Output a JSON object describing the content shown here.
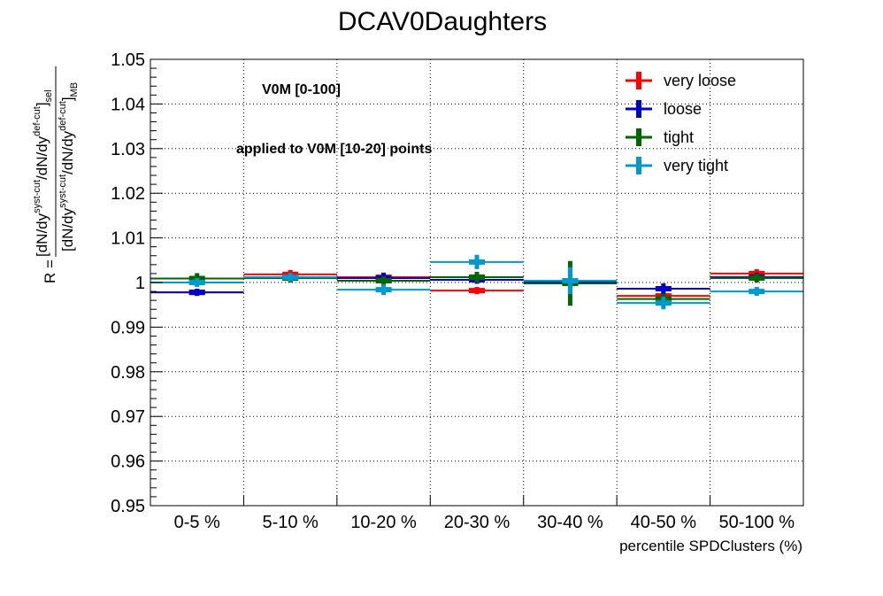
{
  "chart_data": {
    "type": "scatter",
    "title": "DCAV0Daughters",
    "xlabel": "percentile SPDClusters (%)",
    "ylabel": {
      "prefix": "R =",
      "numerator": [
        "[dN/dy",
        "syst-cut",
        "/dN/dy",
        "def-cut",
        "]",
        "sel"
      ],
      "denominator": [
        "[dN/dy",
        "syst-cut",
        "/dN/dy",
        "def-cut",
        "]",
        "MB"
      ]
    },
    "categories": [
      "0-5 %",
      "5-10 %",
      "10-20 %",
      "20-30 %",
      "30-40 %",
      "40-50 %",
      "50-100 %"
    ],
    "ylim": [
      0.95,
      1.05
    ],
    "yticks": [
      "0.95",
      "0.96",
      "0.97",
      "0.98",
      "0.99",
      "1",
      "1.01",
      "1.02",
      "1.03",
      "1.04",
      "1.05"
    ],
    "grid": true,
    "legend_position": "top-right",
    "annotations": [
      "V0M [0-100]",
      "applied to V0M [10-20] points"
    ],
    "series": [
      {
        "name": "very loose",
        "color": "#ff0000",
        "values": [
          0.9978,
          1.0018,
          1.0012,
          0.9982,
          0.9998,
          0.997,
          1.002
        ],
        "errors": [
          0.0008,
          0.001,
          0.001,
          0.0008,
          0.0008,
          0.0008,
          0.001
        ]
      },
      {
        "name": "loose",
        "color": "#0000cc",
        "values": [
          0.9978,
          1.0012,
          1.001,
          1.0006,
          1.0,
          0.9986,
          1.0012
        ],
        "errors": [
          0.0008,
          0.0009,
          0.0012,
          0.0009,
          0.0008,
          0.0012,
          0.001
        ]
      },
      {
        "name": "tight",
        "color": "#006600",
        "values": [
          1.0009,
          1.001,
          1.0004,
          1.0012,
          0.9998,
          0.9963,
          1.001
        ],
        "errors": [
          0.0012,
          0.001,
          0.001,
          0.0012,
          0.005,
          0.0012,
          0.001
        ]
      },
      {
        "name": "very tight",
        "color": "#0099cc",
        "values": [
          1.0,
          1.0012,
          0.9984,
          1.0046,
          1.0004,
          0.9954,
          0.998
        ],
        "errors": [
          0.001,
          0.001,
          0.0012,
          0.0016,
          0.003,
          0.0014,
          0.001
        ]
      }
    ]
  }
}
